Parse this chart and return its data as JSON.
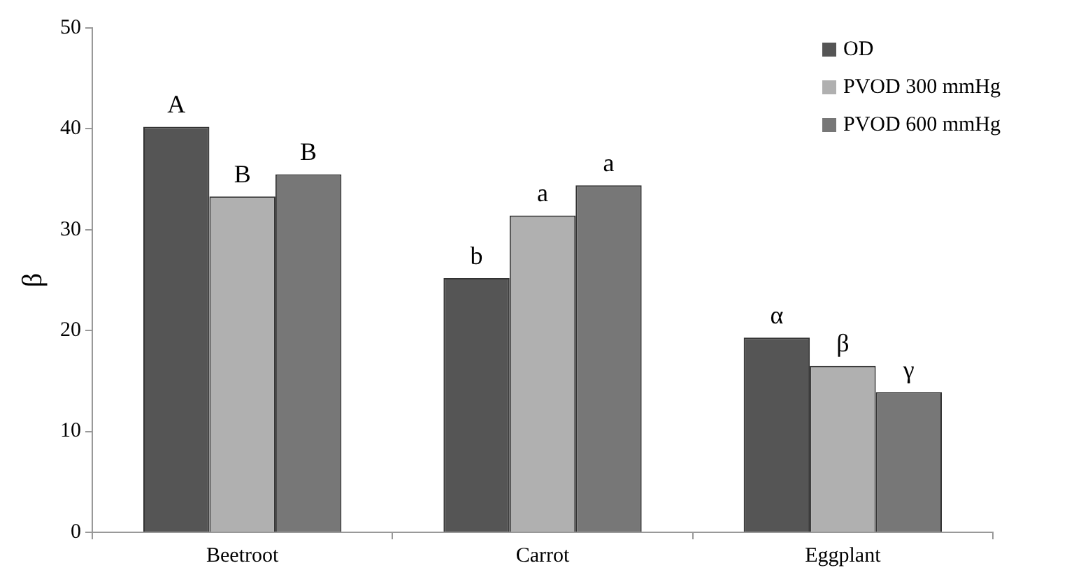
{
  "chart_data": {
    "type": "bar",
    "ylabel": "β",
    "categories": [
      "Beetroot",
      "Carrot",
      "Eggplant"
    ],
    "series": [
      {
        "name": "OD",
        "color": "#555555",
        "values": [
          40.2,
          25.2,
          19.3
        ],
        "value_labels": [
          "A",
          "b",
          "α"
        ]
      },
      {
        "name": "PVOD 300 mmHg",
        "color": "#b0b0b0",
        "values": [
          33.3,
          31.4,
          16.5
        ],
        "value_labels": [
          "B",
          "a",
          "β"
        ]
      },
      {
        "name": "PVOD 600 mmHg",
        "color": "#777777",
        "values": [
          35.5,
          34.4,
          13.9
        ],
        "value_labels": [
          "B",
          "a",
          "γ"
        ]
      }
    ],
    "ylim": [
      0,
      50
    ],
    "yticks": [
      0,
      10,
      20,
      30,
      40,
      50
    ],
    "grid": false,
    "legend": "top right"
  }
}
